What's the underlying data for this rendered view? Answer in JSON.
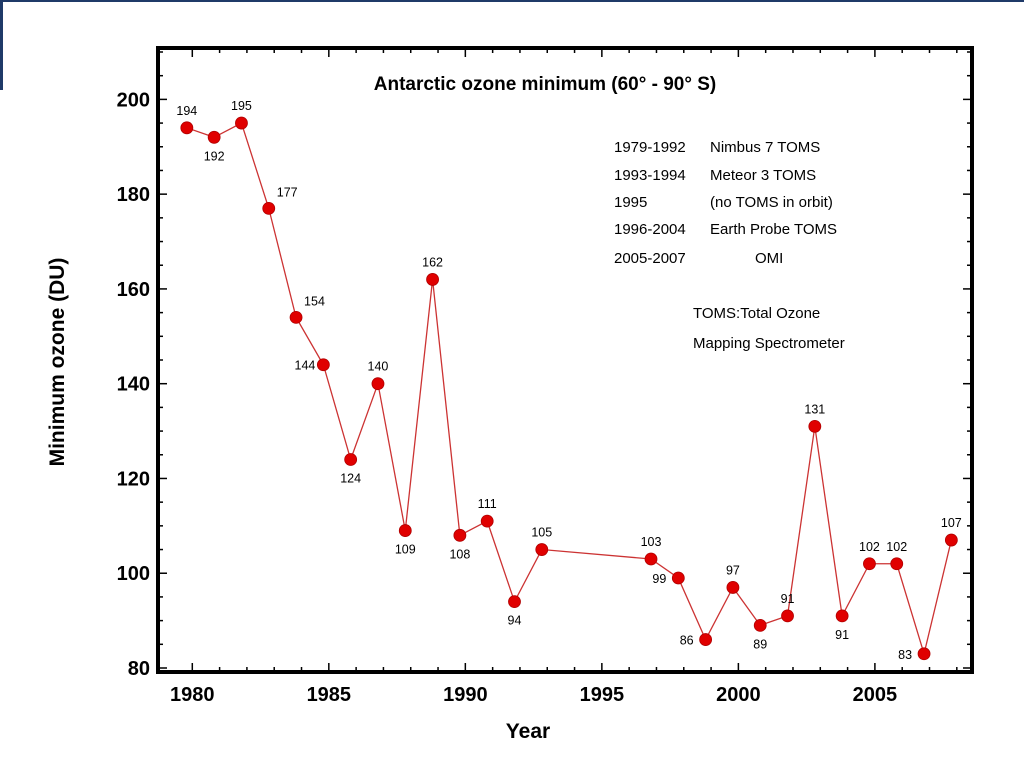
{
  "theme": {
    "frame_color": "#1f3a68",
    "series_line": "#cc3333",
    "marker_fill": "#e00000"
  },
  "chart_data": {
    "type": "line",
    "title": "Antarctic ozone minimum (60° - 90° S)",
    "xlabel": "Year",
    "ylabel": "Minimum ozone (DU)",
    "xlim": [
      1979,
      2008.3
    ],
    "ylim": [
      80,
      210
    ],
    "xticks": [
      1980,
      1985,
      1990,
      1995,
      2000,
      2005
    ],
    "yticks": [
      80,
      100,
      120,
      140,
      160,
      180,
      200
    ],
    "grid": false,
    "series": [
      {
        "x": [
          1979.8,
          1980.8,
          1981.8,
          1982.8,
          1983.8,
          1984.8,
          1985.8,
          1986.8,
          1987.8,
          1988.8,
          1989.8,
          1990.8,
          1991.8,
          1992.8,
          1996.8,
          1997.8,
          1998.8,
          1999.8,
          2000.8,
          2001.8,
          2002.8,
          2003.8,
          2004.8,
          2005.8,
          2006.8,
          2007.8
        ],
        "y": [
          194,
          192,
          195,
          177,
          154,
          144,
          124,
          140,
          109,
          162,
          108,
          111,
          94,
          105,
          103,
          99,
          86,
          97,
          89,
          91,
          131,
          91,
          102,
          102,
          83,
          107
        ],
        "labels": [
          "194",
          "192",
          "195",
          "177",
          "154",
          "144",
          "124",
          "140",
          "109",
          "162",
          "108",
          "111",
          "94",
          "105",
          "103",
          "99",
          "86",
          "97",
          "89",
          "91",
          "131",
          "91",
          "102",
          "102",
          "83",
          "107"
        ]
      }
    ],
    "legend": {
      "placement": "top-right",
      "rows": [
        {
          "years": "1979-1992",
          "source": "Nimbus 7 TOMS"
        },
        {
          "years": "1993-1994",
          "source": "Meteor 3 TOMS"
        },
        {
          "years": "1995",
          "source": "(no TOMS in orbit)"
        },
        {
          "years": "1996-2004",
          "source": "Earth Probe TOMS"
        },
        {
          "years": "2005-2007",
          "source": "OMI"
        }
      ]
    },
    "annotations": [
      "TOMS:Total Ozone",
      "Mapping Spectrometer"
    ]
  }
}
